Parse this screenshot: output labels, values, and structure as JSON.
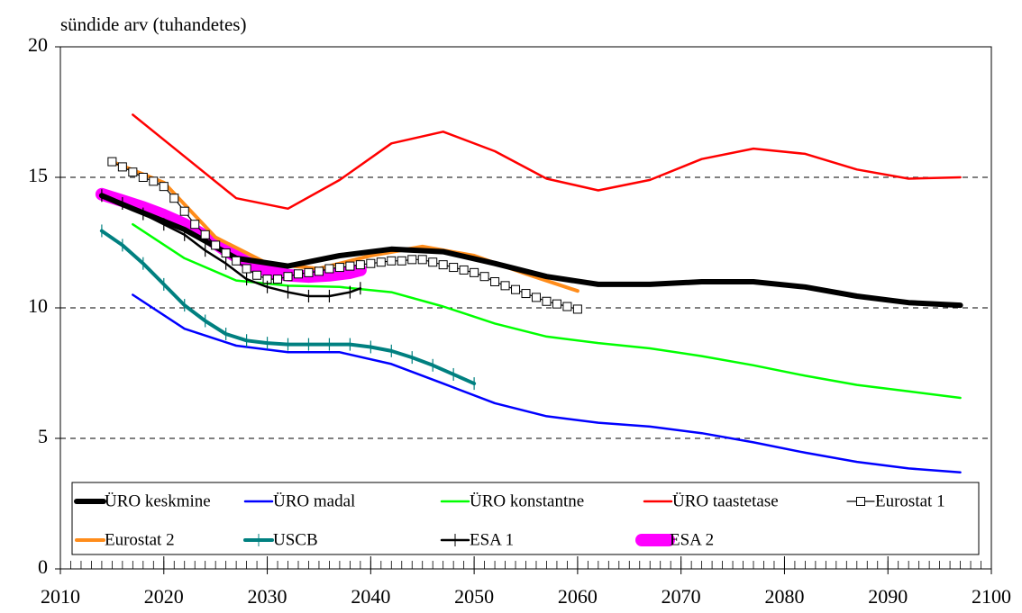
{
  "chart_data": {
    "type": "line",
    "y_label": "sündide arv (tuhandetes)",
    "xlim": [
      2010,
      2100
    ],
    "xticks": [
      2010,
      2020,
      2030,
      2040,
      2050,
      2060,
      2070,
      2080,
      2090,
      2100
    ],
    "ylim": [
      0,
      20
    ],
    "yticks": [
      0,
      5,
      10,
      15,
      20
    ],
    "grid": true,
    "legend": "bottom",
    "series": [
      {
        "name": "ÜRO keskmine",
        "color": "#000000",
        "width": 6,
        "marker": "none",
        "x": [
          2014,
          2017,
          2022,
          2027,
          2032,
          2037,
          2042,
          2047,
          2052,
          2057,
          2062,
          2067,
          2072,
          2077,
          2082,
          2087,
          2092,
          2097
        ],
        "values": [
          14.3,
          13.8,
          13.0,
          11.9,
          11.6,
          12.0,
          12.25,
          12.15,
          11.7,
          11.2,
          10.9,
          10.9,
          11.0,
          11.0,
          10.8,
          10.45,
          10.2,
          10.1
        ]
      },
      {
        "name": "ÜRO madal",
        "color": "#0000ff",
        "width": 2.5,
        "marker": "none",
        "x": [
          2017,
          2022,
          2027,
          2032,
          2037,
          2042,
          2047,
          2052,
          2057,
          2062,
          2067,
          2072,
          2077,
          2082,
          2087,
          2092,
          2097
        ],
        "values": [
          10.5,
          9.2,
          8.55,
          8.3,
          8.3,
          7.85,
          7.1,
          6.35,
          5.85,
          5.6,
          5.45,
          5.2,
          4.85,
          4.45,
          4.1,
          3.85,
          3.7
        ]
      },
      {
        "name": "ÜRO konstantne",
        "color": "#00ff00",
        "width": 2.5,
        "marker": "none",
        "x": [
          2017,
          2022,
          2027,
          2032,
          2037,
          2042,
          2047,
          2052,
          2057,
          2062,
          2067,
          2072,
          2077,
          2082,
          2087,
          2092,
          2097
        ],
        "values": [
          13.2,
          11.9,
          11.05,
          10.85,
          10.8,
          10.6,
          10.05,
          9.4,
          8.9,
          8.65,
          8.45,
          8.15,
          7.8,
          7.4,
          7.05,
          6.8,
          6.55
        ]
      },
      {
        "name": "ÜRO taastetase",
        "color": "#ff0000",
        "width": 2.5,
        "marker": "none",
        "x": [
          2017,
          2022,
          2027,
          2032,
          2037,
          2042,
          2047,
          2052,
          2057,
          2062,
          2067,
          2072,
          2077,
          2082,
          2087,
          2092,
          2097
        ],
        "values": [
          17.4,
          15.8,
          14.2,
          13.8,
          14.9,
          16.3,
          16.75,
          16.0,
          14.95,
          14.5,
          14.9,
          15.7,
          16.1,
          15.9,
          15.3,
          14.95,
          15.0
        ]
      },
      {
        "name": "Eurostat 1",
        "color": "#000000",
        "width": 1.2,
        "marker": "square",
        "x": [
          2015,
          2016,
          2017,
          2018,
          2019,
          2020,
          2021,
          2022,
          2023,
          2024,
          2025,
          2026,
          2027,
          2028,
          2029,
          2030,
          2031,
          2032,
          2033,
          2034,
          2035,
          2036,
          2037,
          2038,
          2039,
          2040,
          2041,
          2042,
          2043,
          2044,
          2045,
          2046,
          2047,
          2048,
          2049,
          2050,
          2051,
          2052,
          2053,
          2054,
          2055,
          2056,
          2057,
          2058,
          2059,
          2060
        ],
        "values": [
          15.6,
          15.4,
          15.2,
          15.0,
          14.85,
          14.65,
          14.2,
          13.7,
          13.2,
          12.8,
          12.4,
          12.1,
          11.8,
          11.5,
          11.25,
          11.1,
          11.1,
          11.2,
          11.3,
          11.35,
          11.4,
          11.5,
          11.55,
          11.6,
          11.65,
          11.7,
          11.75,
          11.8,
          11.8,
          11.85,
          11.85,
          11.75,
          11.65,
          11.55,
          11.45,
          11.35,
          11.2,
          11.0,
          10.85,
          10.7,
          10.55,
          10.4,
          10.25,
          10.15,
          10.05,
          9.95
        ]
      },
      {
        "name": "Eurostat 2",
        "color": "#ff8c1a",
        "width": 4,
        "marker": "none",
        "x": [
          2015,
          2020,
          2025,
          2030,
          2035,
          2040,
          2045,
          2050,
          2055,
          2060
        ],
        "values": [
          15.6,
          14.8,
          12.7,
          11.7,
          11.5,
          12.0,
          12.35,
          12.0,
          11.3,
          10.65
        ]
      },
      {
        "name": "USCB",
        "color": "#008080",
        "width": 4,
        "marker": "hash",
        "x": [
          2014,
          2016,
          2018,
          2020,
          2022,
          2024,
          2026,
          2028,
          2030,
          2032,
          2034,
          2036,
          2038,
          2040,
          2042,
          2044,
          2046,
          2048,
          2050
        ],
        "values": [
          12.95,
          12.4,
          11.7,
          10.9,
          10.1,
          9.5,
          9.0,
          8.75,
          8.65,
          8.6,
          8.6,
          8.6,
          8.6,
          8.5,
          8.35,
          8.1,
          7.8,
          7.45,
          7.1
        ]
      },
      {
        "name": "ESA 1",
        "color": "#000000",
        "width": 2.5,
        "marker": "hash",
        "x": [
          2014,
          2016,
          2018,
          2020,
          2022,
          2024,
          2026,
          2028,
          2030,
          2032,
          2034,
          2036,
          2038,
          2039
        ],
        "values": [
          14.3,
          14.0,
          13.6,
          13.2,
          12.8,
          12.2,
          11.7,
          11.1,
          10.8,
          10.6,
          10.45,
          10.45,
          10.6,
          10.75
        ]
      },
      {
        "name": "ESA 2",
        "color": "#ff00ff",
        "width": 14,
        "marker": "none",
        "x": [
          2014,
          2016,
          2018,
          2020,
          2022,
          2024,
          2026,
          2028,
          2030,
          2032,
          2034,
          2036,
          2038,
          2039
        ],
        "values": [
          14.35,
          14.1,
          13.85,
          13.55,
          13.2,
          12.75,
          12.2,
          11.75,
          11.4,
          11.25,
          11.2,
          11.25,
          11.35,
          11.45
        ]
      }
    ]
  }
}
